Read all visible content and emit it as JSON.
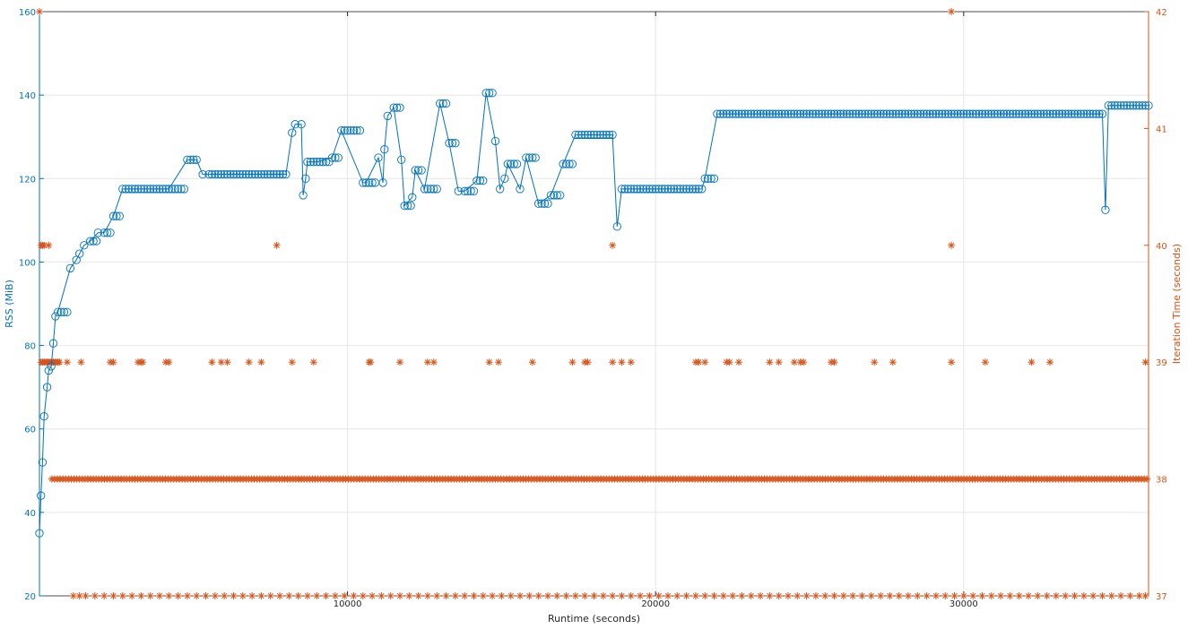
{
  "chart_data": {
    "type": "scatter",
    "title": "",
    "xlabel": "Runtime (seconds)",
    "ylabel": "RSS (MiB)",
    "y2label": "Iteration Time (seconds)",
    "xlim": [
      0,
      36000
    ],
    "ylim": [
      20,
      160
    ],
    "y2lim": [
      37,
      42
    ],
    "x_ticks": [
      10000,
      20000,
      30000
    ],
    "y_ticks": [
      20,
      40,
      60,
      80,
      100,
      120,
      140,
      160
    ],
    "y2_ticks": [
      37,
      38,
      39,
      40,
      41,
      42
    ],
    "grid": true,
    "colors": {
      "rss": "#0072BD",
      "iteration": "#D95319",
      "axis": "#262626",
      "grid": "#e6e6e6"
    },
    "series": [
      {
        "axis": "left",
        "marker": "circle",
        "line": true,
        "x": [
          0,
          50,
          100,
          150,
          250,
          300,
          380,
          450,
          520,
          600,
          1000,
          1200,
          1300,
          1450,
          1650,
          1900,
          2100,
          2400,
          2700,
          3000,
          3300,
          3600,
          4200,
          4800,
          5100,
          5300,
          5500,
          6000,
          6500,
          7000,
          7500,
          8000,
          8200,
          8300,
          8500,
          8560,
          8640,
          8700,
          9000,
          9500,
          9800,
          10500,
          10600,
          11000,
          11150,
          11200,
          11300,
          11500,
          11750,
          11850,
          12100,
          12200,
          12500,
          13000,
          13300,
          13600,
          13800,
          14200,
          14500,
          14800,
          14950,
          15100,
          15200,
          15600,
          15800,
          16200,
          16600,
          17000,
          17400,
          17700,
          18600,
          18750,
          18900,
          21500,
          21600,
          22000,
          34500,
          34600,
          34700,
          36000
        ],
        "y": [
          35,
          44,
          52,
          63,
          70,
          74,
          75,
          80.5,
          87,
          88,
          98.5,
          100.5,
          102,
          104,
          105,
          107,
          107,
          111,
          117.5,
          117.5,
          117.5,
          117.5,
          117.5,
          124.5,
          124.5,
          121,
          121,
          121,
          121,
          121,
          121,
          121,
          131,
          133,
          133,
          116,
          120,
          124,
          124,
          125,
          131.5,
          119,
          119,
          125,
          119,
          127,
          135,
          137,
          124.5,
          113.5,
          115.5,
          122,
          117.5,
          138,
          128.5,
          117,
          117,
          119.5,
          140.5,
          129,
          117.5,
          120,
          123.5,
          117.5,
          125,
          114,
          116,
          123.5,
          130.5,
          130.5,
          130.5,
          108.5,
          117.5,
          117.5,
          120,
          135.5,
          135.5,
          112.5,
          137.5,
          137.5
        ]
      },
      {
        "axis": "right",
        "marker": "asterisk",
        "line": false,
        "note_levels": [
          37,
          38,
          39,
          40,
          42
        ],
        "x_level_37": [
          1100,
          1300,
          1500,
          1800,
          2100,
          2400,
          2700,
          3000,
          3300,
          3600,
          3900,
          4200,
          4500,
          4800,
          5100,
          5400,
          5700,
          6000,
          6300,
          6600,
          6900,
          7200,
          7500,
          7800,
          8100,
          8400,
          8700,
          9000,
          9300,
          9600,
          9900,
          10200,
          10500,
          10800,
          11100,
          11400,
          11700,
          12000,
          12300,
          12600,
          12900,
          13200,
          13500,
          13800,
          14100,
          14400,
          14700,
          15000,
          15300,
          15600,
          15900,
          16200,
          16500,
          16800,
          17100,
          17400,
          17700,
          18000,
          18300,
          18600,
          18900,
          19200,
          19500,
          19800,
          20100,
          20400,
          20700,
          21000,
          21300,
          21600,
          21900,
          22200,
          22500,
          22800,
          23100,
          23400,
          23700,
          24000,
          24300,
          24600,
          24900,
          25200,
          25500,
          25800,
          26100,
          26400,
          26700,
          27000,
          27300,
          27600,
          27900,
          28200,
          28500,
          28800,
          29100,
          29400,
          29700,
          30000,
          30300,
          30600,
          30900,
          31200,
          31500,
          31800,
          32100,
          32400,
          32700,
          33000,
          33300,
          33600,
          33900,
          34200,
          34500,
          34800,
          35100,
          35400,
          35700,
          35900
        ],
        "x_level_39": [
          50,
          100,
          150,
          200,
          250,
          300,
          350,
          400,
          450,
          500,
          550,
          600,
          650,
          900,
          1350,
          2300,
          2400,
          3200,
          3300,
          3350,
          4100,
          4200,
          5600,
          5900,
          6100,
          6800,
          7200,
          8200,
          8900,
          10700,
          10750,
          11700,
          12600,
          12800,
          14600,
          14900,
          16000,
          17300,
          17700,
          17800,
          18600,
          18900,
          19200,
          21300,
          21400,
          21600,
          22300,
          22400,
          22700,
          23700,
          24000,
          24500,
          24700,
          24800,
          25700,
          25800,
          27100,
          27700,
          29600,
          30700,
          32200,
          32800,
          35900
        ],
        "x_level_40": [
          50,
          100,
          150,
          300,
          7700,
          18600,
          29600
        ],
        "x_level_42": [
          0,
          29600
        ]
      }
    ]
  }
}
